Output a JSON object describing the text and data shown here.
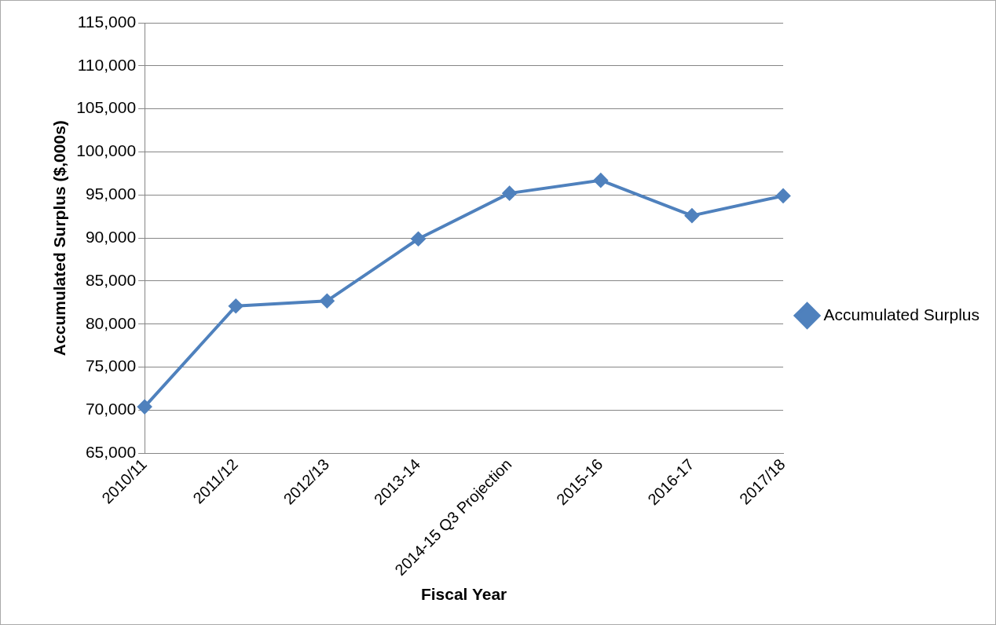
{
  "chart_data": {
    "type": "line",
    "xlabel": "Fiscal Year",
    "ylabel": "Accumulated Surplus ($,000s)",
    "categories": [
      "2010/11",
      "2011/12",
      "2012/13",
      "2013-14",
      "2014-15 Q3 Projection",
      "2015-16",
      "2016-17",
      "2017/18"
    ],
    "series": [
      {
        "name": "Accumulated Surplus",
        "color": "#4f81bd",
        "values": [
          70400,
          82100,
          82700,
          89900,
          95200,
          96700,
          92600,
          94900
        ]
      }
    ],
    "ylim": [
      65000,
      115000
    ],
    "yticks": [
      {
        "value": 65000,
        "label": "65,000"
      },
      {
        "value": 70000,
        "label": "70,000"
      },
      {
        "value": 75000,
        "label": "75,000"
      },
      {
        "value": 80000,
        "label": "80,000"
      },
      {
        "value": 85000,
        "label": "85,000"
      },
      {
        "value": 90000,
        "label": "90,000"
      },
      {
        "value": 95000,
        "label": "95,000"
      },
      {
        "value": 100000,
        "label": "100,000"
      },
      {
        "value": 105000,
        "label": "105,000"
      },
      {
        "value": 110000,
        "label": "110,000"
      },
      {
        "value": 115000,
        "label": "115,000"
      }
    ],
    "grid": "y",
    "legend": "right",
    "marker": "diamond",
    "line_style": "solid"
  }
}
